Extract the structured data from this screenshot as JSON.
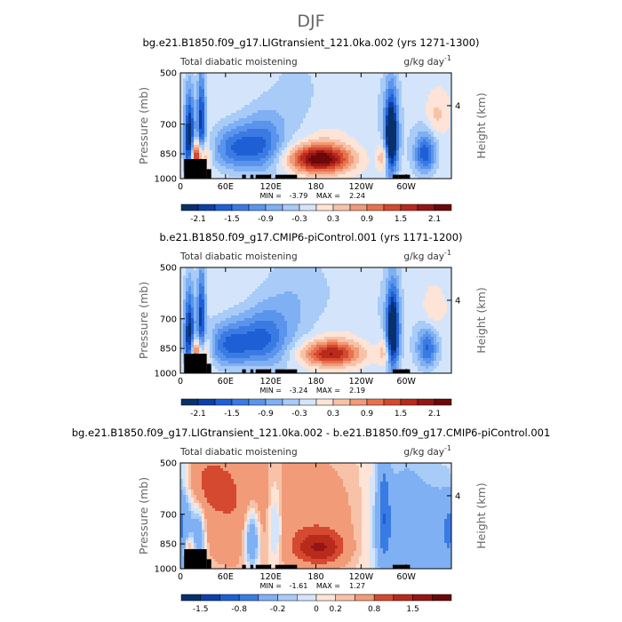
{
  "figure": {
    "title": "DJF"
  },
  "colors": {
    "scale": [
      "#08306b",
      "#0d3fa8",
      "#1f5fd6",
      "#3a7be3",
      "#5b94ec",
      "#7fb0f3",
      "#a8cbf7",
      "#d4e5fb",
      "#fde4d6",
      "#f8c2a8",
      "#f19b78",
      "#e6724f",
      "#d4492f",
      "#b82a1c",
      "#951515",
      "#6b0808"
    ]
  },
  "chart_data": [
    {
      "type": "heatmap",
      "title": "bg.e21.B1850.f09_g17.LIGtransient_121.0ka.002 (yrs 1271-1300)",
      "left_subtitle": "Total diabatic moistening",
      "units_main": "g/kg day",
      "units_exp": "-1",
      "ylabel": "Pressure (mb)",
      "right_label": "Height (km)",
      "right_tick": "4",
      "xticks": [
        "0",
        "60E",
        "120E",
        "180",
        "120W",
        "60W"
      ],
      "yticks": [
        "500",
        "700",
        "850",
        "1000"
      ],
      "min_label": "MIN =",
      "min_value": "-3.79",
      "max_label": "MAX =",
      "max_value": "2.24",
      "colorbar_labels": [
        "-2.1",
        "-1.5",
        "-0.9",
        "-0.3",
        "0.3",
        "0.9",
        "1.5",
        "2.1"
      ],
      "colorbar_levels": [
        -2.4,
        -2.1,
        -1.8,
        -1.5,
        -1.2,
        -0.9,
        -0.6,
        -0.3,
        0,
        0.3,
        0.6,
        0.9,
        1.2,
        1.5,
        1.8,
        2.1,
        2.4
      ],
      "xlim": [
        0,
        360
      ],
      "ylim": [
        1000,
        500
      ]
    },
    {
      "type": "heatmap",
      "title": "b.e21.B1850.f09_g17.CMIP6-piControl.001 (yrs 1171-1200)",
      "left_subtitle": "Total diabatic moistening",
      "units_main": "g/kg day",
      "units_exp": "-1",
      "ylabel": "Pressure (mb)",
      "right_label": "Height (km)",
      "right_tick": "4",
      "xticks": [
        "0",
        "60E",
        "120E",
        "180",
        "120W",
        "60W"
      ],
      "yticks": [
        "500",
        "700",
        "850",
        "1000"
      ],
      "min_label": "MIN =",
      "min_value": "-3.24",
      "max_label": "MAX =",
      "max_value": "2.19",
      "colorbar_labels": [
        "-2.1",
        "-1.5",
        "-0.9",
        "-0.3",
        "0.3",
        "0.9",
        "1.5",
        "2.1"
      ],
      "colorbar_levels": [
        -2.4,
        -2.1,
        -1.8,
        -1.5,
        -1.2,
        -0.9,
        -0.6,
        -0.3,
        0,
        0.3,
        0.6,
        0.9,
        1.2,
        1.5,
        1.8,
        2.1,
        2.4
      ],
      "xlim": [
        0,
        360
      ],
      "ylim": [
        1000,
        500
      ]
    },
    {
      "type": "heatmap",
      "title": "bg.e21.B1850.f09_g17.LIGtransient_121.0ka.002 - b.e21.B1850.f09_g17.CMIP6-piControl.001",
      "left_subtitle": "Total diabatic moistening",
      "units_main": "g/kg day",
      "units_exp": "-1",
      "ylabel": "Pressure (mb)",
      "right_label": "Height (km)",
      "right_tick": "4",
      "xticks": [
        "0",
        "60E",
        "120E",
        "180",
        "120W",
        "60W"
      ],
      "yticks": [
        "500",
        "700",
        "850",
        "1000"
      ],
      "min_label": "MIN =",
      "min_value": "-1.61",
      "max_label": "MAX =",
      "max_value": "1.27",
      "colorbar_labels": [
        "-1.5",
        "-0.8",
        "-0.2",
        "0",
        "0.2",
        "0.8",
        "1.5"
      ],
      "colorbar_levels": [
        -2,
        -1.5,
        -1.2,
        -0.8,
        -0.5,
        -0.2,
        -0.1,
        0,
        0.1,
        0.2,
        0.5,
        0.8,
        1.2,
        1.5,
        2
      ],
      "xlim": [
        0,
        360
      ],
      "ylim": [
        1000,
        500
      ]
    }
  ]
}
